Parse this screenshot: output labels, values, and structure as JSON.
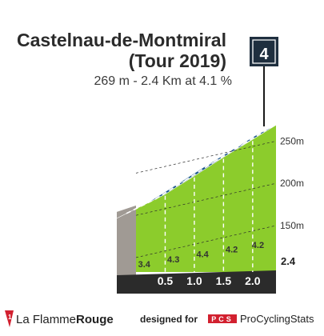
{
  "header": {
    "title_line1": "Castelnau-de-Montmiral",
    "title_line2": "(Tour 2019)",
    "subtitle": "269 m - 2.4 Km at 4.1 %",
    "category_badge": "4"
  },
  "chart_data": {
    "type": "area",
    "title": "Castelnau-de-Montmiral (Tour 2019)",
    "subtitle": "269 m - 2.4 Km at 4.1 %",
    "x_unit": "km",
    "y_unit": "m",
    "x_ticks": [
      "0.5",
      "1.0",
      "1.5",
      "2.0",
      "2.4"
    ],
    "y_ticks": [
      "150m",
      "200m",
      "250m"
    ],
    "y_tick_values": [
      150,
      200,
      250
    ],
    "xlim": [
      0,
      2.4
    ],
    "ylim": [
      95,
      275
    ],
    "segments": [
      {
        "from_km": 0,
        "to_km": 0.5,
        "gradient": 3.4,
        "label": "3.4"
      },
      {
        "from_km": 0.5,
        "to_km": 1.0,
        "gradient": 4.3,
        "label": "4.3"
      },
      {
        "from_km": 1.0,
        "to_km": 1.5,
        "gradient": 4.4,
        "label": "4.4"
      },
      {
        "from_km": 1.5,
        "to_km": 2.0,
        "gradient": 4.2,
        "label": "4.2"
      },
      {
        "from_km": 2.0,
        "to_km": 2.4,
        "gradient": 4.2,
        "label": "4.2"
      }
    ],
    "start_elevation": 170,
    "summit_elevation": 269,
    "colors": {
      "climb_fill": "#8ccc2c",
      "road_band": "#1f5a8c",
      "base_band": "#2b2b2b",
      "start_side": "#a09a94",
      "label_text": "#333333"
    },
    "grid": true
  },
  "footer": {
    "brand_left_strong": "La Flamme",
    "brand_left_bold": "Rouge",
    "designed_by": "designed for",
    "pcs_logo": "PCS",
    "brand_right": "ProCyclingStats"
  }
}
